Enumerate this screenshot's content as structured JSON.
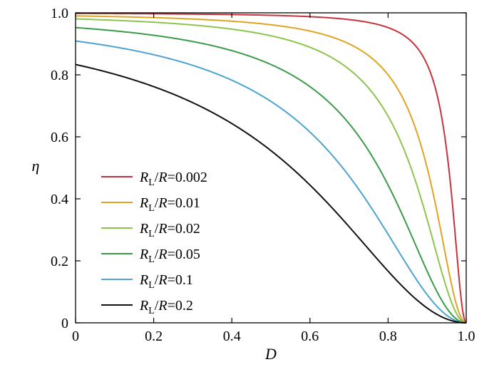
{
  "chart_data": {
    "type": "line",
    "xlabel": "D",
    "ylabel": "η",
    "xlim": [
      0,
      1.0
    ],
    "ylim": [
      0,
      1.0
    ],
    "x_ticks": [
      0,
      0.2,
      0.4,
      0.6,
      0.8,
      1.0
    ],
    "x_tick_labels": [
      "0",
      "0.2",
      "0.4",
      "0.6",
      "0.8",
      "1.0"
    ],
    "y_ticks": [
      0,
      0.2,
      0.4,
      0.6,
      0.8,
      1.0
    ],
    "y_tick_labels": [
      "0",
      "0.2",
      "0.4",
      "0.6",
      "0.8",
      "1.0"
    ],
    "grid": false,
    "legend_position": "left-middle",
    "series": [
      {
        "name": "RL/R=0.002",
        "ratio": 0.002,
        "color": "#c8323a",
        "legend_prefix": "R",
        "legend_sub": "L",
        "legend_mid": "/",
        "legend_it2": "R",
        "legend_value": "=0.002"
      },
      {
        "name": "RL/R=0.01",
        "ratio": 0.01,
        "color": "#e0a422",
        "legend_prefix": "R",
        "legend_sub": "L",
        "legend_mid": "/",
        "legend_it2": "R",
        "legend_value": "=0.01"
      },
      {
        "name": "RL/R=0.02",
        "ratio": 0.02,
        "color": "#8cc54e",
        "legend_prefix": "R",
        "legend_sub": "L",
        "legend_mid": "/",
        "legend_it2": "R",
        "legend_value": "=0.02"
      },
      {
        "name": "RL/R=0.05",
        "ratio": 0.05,
        "color": "#3a9c48",
        "legend_prefix": "R",
        "legend_sub": "L",
        "legend_mid": "/",
        "legend_it2": "R",
        "legend_value": "=0.05"
      },
      {
        "name": "RL/R=0.1",
        "ratio": 0.1,
        "color": "#4da3cf",
        "legend_prefix": "R",
        "legend_sub": "L",
        "legend_mid": "/",
        "legend_it2": "R",
        "legend_value": "=0.1"
      },
      {
        "name": "RL/R=0.2",
        "ratio": 0.2,
        "color": "#111111",
        "legend_prefix": "R",
        "legend_sub": "L",
        "legend_mid": "/",
        "legend_it2": "R",
        "legend_value": "=0.2"
      }
    ]
  }
}
